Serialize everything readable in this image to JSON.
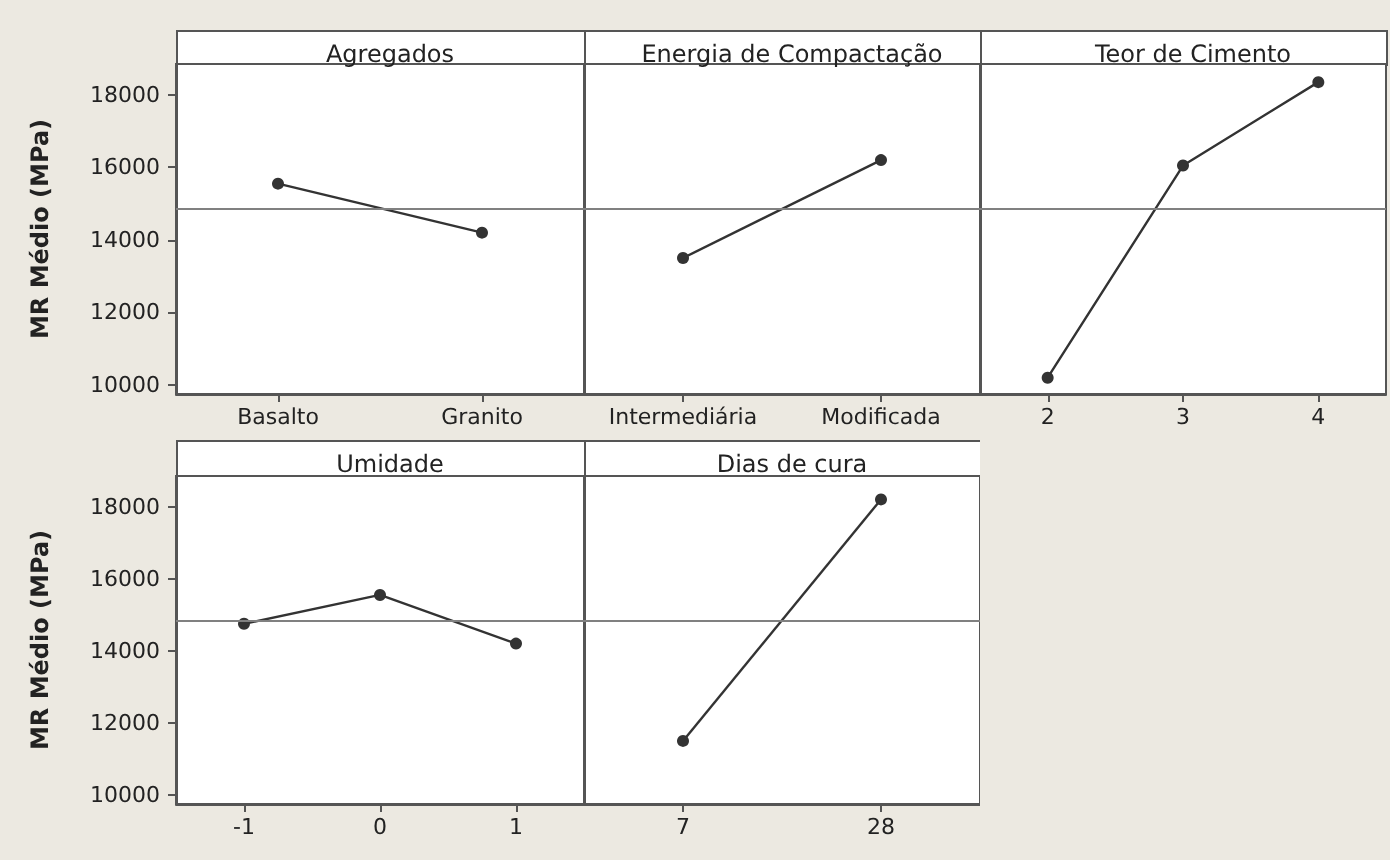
{
  "chart_data": [
    {
      "type": "line",
      "title": "Agregados",
      "ylabel": "MR Médio (MPa)",
      "categories": [
        "Basalto",
        "Granito"
      ],
      "series": [
        {
          "color": "#333333",
          "values": [
            15550,
            14200
          ]
        }
      ],
      "ylim": [
        9750,
        18850
      ],
      "yticks": [
        10000,
        12000,
        14000,
        16000,
        18000
      ],
      "ref_lines": [
        {
          "axis": "y",
          "value": 14850,
          "color": "#808080"
        }
      ],
      "marker": "circle",
      "grid": false
    },
    {
      "type": "line",
      "title": "Energia de Compactação",
      "categories": [
        "Intermediária",
        "Modificada"
      ],
      "series": [
        {
          "color": "#333333",
          "values": [
            13500,
            16200
          ]
        }
      ],
      "ylim": [
        9750,
        18850
      ],
      "yticks": [
        10000,
        12000,
        14000,
        16000,
        18000
      ],
      "tick_labels": "x",
      "ref_lines": [
        {
          "axis": "y",
          "value": 14850,
          "color": "#808080"
        }
      ],
      "marker": "circle",
      "grid": false
    },
    {
      "type": "line",
      "title": "Teor de Cimento",
      "categories": [
        "2",
        "3",
        "4"
      ],
      "series": [
        {
          "color": "#333333",
          "values": [
            10200,
            16050,
            18350
          ]
        }
      ],
      "ylim": [
        9750,
        18850
      ],
      "yticks": [
        10000,
        12000,
        14000,
        16000,
        18000
      ],
      "tick_labels": "x",
      "ref_lines": [
        {
          "axis": "y",
          "value": 14850,
          "color": "#808080"
        }
      ],
      "marker": "circle",
      "grid": false
    },
    {
      "type": "line",
      "title": "Umidade",
      "ylabel": "MR Médio (MPa)",
      "categories": [
        "-1",
        "0",
        "1"
      ],
      "series": [
        {
          "color": "#333333",
          "values": [
            14750,
            15550,
            14200
          ]
        }
      ],
      "ylim": [
        9750,
        18850
      ],
      "yticks": [
        10000,
        12000,
        14000,
        16000,
        18000
      ],
      "ref_lines": [
        {
          "axis": "y",
          "value": 14850,
          "color": "#808080"
        }
      ],
      "marker": "circle",
      "grid": false
    },
    {
      "type": "line",
      "title": "Dias de cura",
      "categories": [
        "7",
        "28"
      ],
      "series": [
        {
          "color": "#333333",
          "values": [
            11500,
            18200
          ]
        }
      ],
      "ylim": [
        9750,
        18850
      ],
      "yticks": [
        10000,
        12000,
        14000,
        16000,
        18000
      ],
      "tick_labels": "x",
      "ref_lines": [
        {
          "axis": "y",
          "value": 14850,
          "color": "#808080"
        }
      ],
      "marker": "circle",
      "grid": false
    }
  ]
}
